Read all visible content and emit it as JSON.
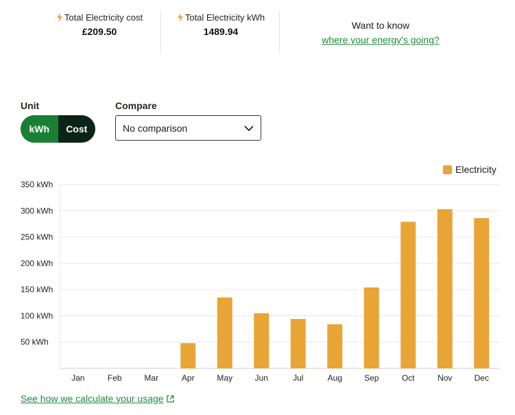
{
  "summary": {
    "cost_label": "Total Electricity cost",
    "cost_value": "£209.50",
    "kwh_label": "Total Electricity kWh",
    "kwh_value": "1489.94",
    "promo_text": "Want to know",
    "promo_link": "where your energy's going?"
  },
  "controls": {
    "unit_label": "Unit",
    "unit_options": [
      "kWh",
      "Cost"
    ],
    "unit_selected": "kWh",
    "compare_label": "Compare",
    "compare_value": "No comparison"
  },
  "footer": {
    "link_text": "See how we calculate your usage"
  },
  "colors": {
    "accent": "#1a7f34",
    "bar": "#e8a535",
    "dark": "#0c2418",
    "link": "#1e8a3a"
  },
  "chart_data": {
    "type": "bar",
    "categories": [
      "Jan",
      "Feb",
      "Mar",
      "Apr",
      "May",
      "Jun",
      "Jul",
      "Aug",
      "Sep",
      "Oct",
      "Nov",
      "Dec"
    ],
    "series": [
      {
        "name": "Electricity",
        "values": [
          0,
          0,
          0,
          48,
          135,
          105,
          94,
          84,
          154,
          279,
          303,
          286
        ]
      }
    ],
    "yticks": [
      "50 kWh",
      "100 kWh",
      "150 kWh",
      "200 kWh",
      "250 kWh",
      "300 kWh",
      "350 kWh"
    ],
    "ytick_values": [
      50,
      100,
      150,
      200,
      250,
      300,
      350
    ],
    "ylim": [
      0,
      350
    ],
    "legend_position": "top-right",
    "grid": true
  }
}
